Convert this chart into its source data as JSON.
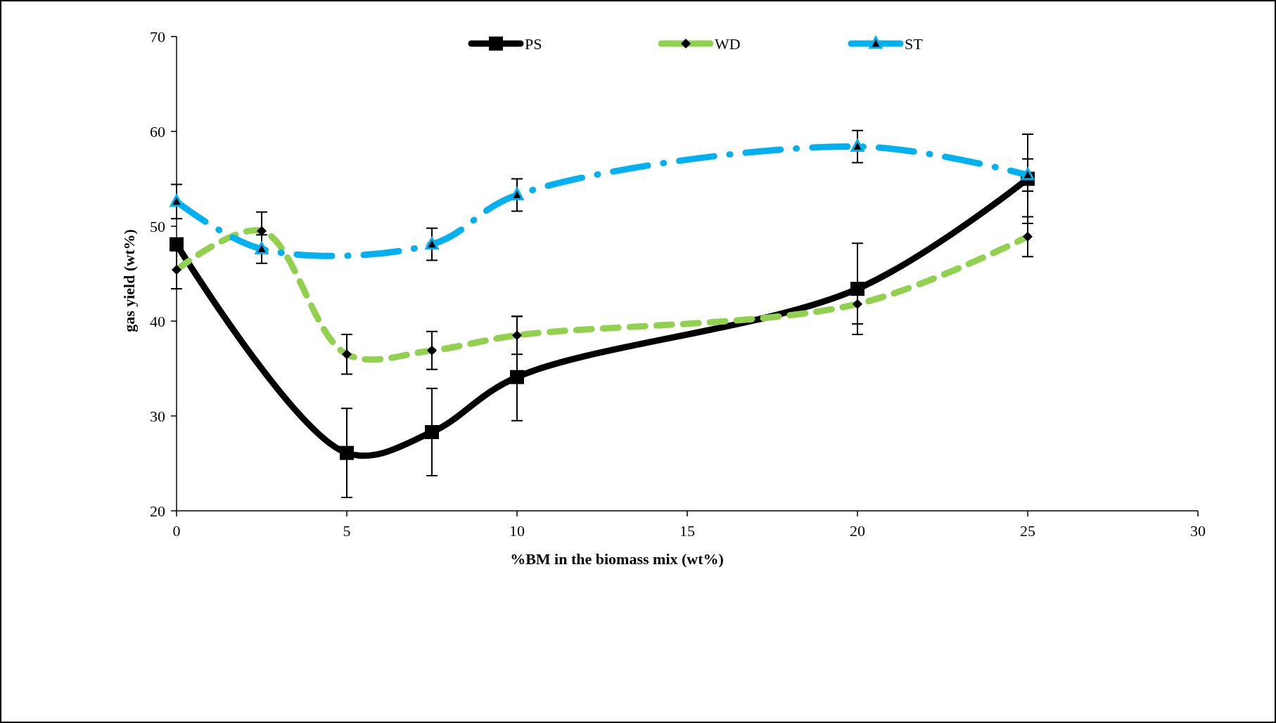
{
  "chart_data": {
    "type": "line",
    "xlabel": "%BM in the biomass mix (wt%)",
    "ylabel": "gas yield (wt%)",
    "xlim": [
      0,
      30
    ],
    "xticks": [
      0,
      5,
      10,
      15,
      20,
      25,
      30
    ],
    "ylim": [
      20,
      70
    ],
    "yticks": [
      20,
      30,
      40,
      50,
      60,
      70
    ],
    "legend": "top",
    "grid": false,
    "series": [
      {
        "name": "PS",
        "color": "#000000",
        "marker": "square",
        "line_style": "solid",
        "x": [
          0,
          5,
          7.5,
          10,
          20,
          25
        ],
        "values": [
          48.1,
          26.1,
          28.3,
          34.1,
          43.4,
          55.0
        ],
        "errors": [
          null,
          4.7,
          4.6,
          [
            29.5,
            40.5
          ],
          4.8,
          4.7
        ]
      },
      {
        "name": "WD",
        "color": "#92d050",
        "marker": "diamond",
        "line_style": "dashed",
        "x": [
          0,
          2.5,
          5,
          7.5,
          10,
          20,
          25
        ],
        "values": [
          45.4,
          49.5,
          36.5,
          36.9,
          38.5,
          41.8,
          48.9
        ],
        "errors": [
          2,
          2,
          2.1,
          2,
          2,
          2.1,
          2.1
        ]
      },
      {
        "name": "ST",
        "color": "#00b0f0",
        "marker": "triangle",
        "line_style": "dashdot",
        "x": [
          0,
          2.5,
          7.5,
          10,
          20,
          25
        ],
        "values": [
          52.6,
          47.6,
          48.1,
          53.3,
          58.4,
          55.4
        ],
        "errors": [
          1.8,
          1.5,
          1.7,
          1.7,
          1.7,
          1.7
        ]
      }
    ]
  }
}
